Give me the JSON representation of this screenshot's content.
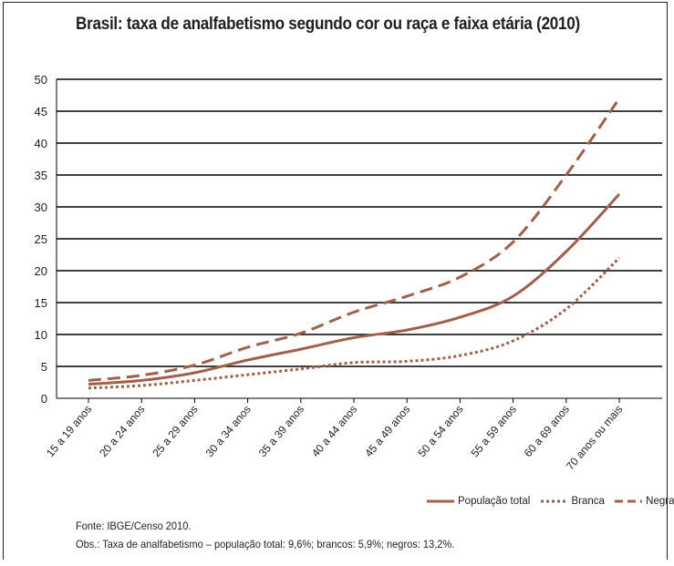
{
  "title": "Brasil: taxa de analfabetismo segundo cor ou raça e faixa etária (2010)",
  "colors": {
    "series": "#a0604a",
    "grid": "#000000"
  },
  "chart_data": {
    "type": "line",
    "categories": [
      "15 a 19 anos",
      "20 a 24 anos",
      "25 a 29 anos",
      "30 a 34 anos",
      "35 a 39 anos",
      "40 a 44 anos",
      "45 a 49 anos",
      "50 a 54 anos",
      "55 a 59 anos",
      "60 a 69 anos",
      "70 anos ou mais"
    ],
    "ylim": [
      0,
      50
    ],
    "yticks": [
      0,
      5,
      10,
      15,
      20,
      25,
      30,
      35,
      40,
      45,
      50
    ],
    "grid": true,
    "legend_position": "bottom-right",
    "series": [
      {
        "name": "População total",
        "style": "solid",
        "values": [
          2.2,
          2.8,
          4.0,
          6.0,
          7.7,
          9.5,
          10.7,
          12.7,
          16.0,
          23.0,
          32.0
        ]
      },
      {
        "name": "Branca",
        "style": "dotted",
        "values": [
          1.6,
          2.0,
          2.8,
          3.7,
          4.6,
          5.6,
          5.8,
          6.7,
          9.0,
          14.0,
          22.0
        ]
      },
      {
        "name": "Negra",
        "style": "dashed",
        "values": [
          2.8,
          3.6,
          5.2,
          8.0,
          10.2,
          13.5,
          16.0,
          19.0,
          24.5,
          35.0,
          47.0
        ]
      }
    ]
  },
  "footer": {
    "source": "Fonte: IBGE/Censo 2010.",
    "note": "Obs.: Taxa de analfabetismo – população total: 9,6%; brancos: 5,9%; negros: 13,2%."
  }
}
